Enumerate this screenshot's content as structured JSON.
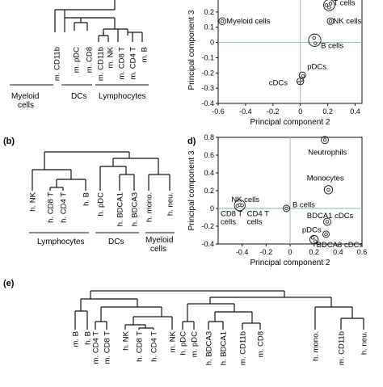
{
  "panels": {
    "b": "(b)",
    "d": "d)",
    "e": "(e)"
  },
  "panel_a": {
    "leaves": [
      "m. CD11b",
      "m. pDC",
      "m. CD8",
      "m. CD11b",
      "m. NK",
      "m. CD8 T",
      "m. CD4 T",
      "m. B"
    ],
    "groups": [
      "Myeloid\ncells",
      "DCs",
      "Lymphocytes"
    ]
  },
  "panel_b": {
    "leaves": [
      "h. NK",
      "h. CD8 T",
      "h. CD4 T",
      "h. B",
      "h. pDC",
      "h. BDCA1",
      "h. BDCA3",
      "h. mono.",
      "h. neu."
    ],
    "groups": [
      "Lymphocytes",
      "DCs",
      "Myeloid\ncells"
    ]
  },
  "panel_e": {
    "leaves": [
      "m. B",
      "h. B",
      "m. CD4 T",
      "m. CD8 T",
      "h. NK",
      "h. CD8 T",
      "h. CD4 T",
      "m. NK",
      "h. pDC",
      "m. pDC",
      "h. BDCA3",
      "h. BDCA1",
      "m. CD11b",
      "m. CD8",
      "h. mono.",
      "m. CD11b",
      "h. neu."
    ]
  },
  "chart_data": [
    {
      "type": "scatter",
      "panel": "c",
      "xlabel": "Principal component 2",
      "ylabel": "Principal component 3",
      "xlim": [
        -0.6,
        0.45
      ],
      "ylim": [
        -0.4,
        0.3
      ],
      "xticks": [
        "-0.6",
        "-0.4",
        "-0.2",
        "0",
        "0.2",
        "0.4"
      ],
      "yticks": [
        "-0.4",
        "-0.3",
        "-0.2",
        "-0.1",
        "0",
        "0.1",
        "0.2",
        "0.3"
      ],
      "ytick_values": [
        -0.4,
        -0.3,
        -0.2,
        -0.1,
        0,
        0.1,
        0.2,
        0.3
      ],
      "points": [
        {
          "x": -0.57,
          "y": 0.14
        },
        {
          "x": 0.21,
          "y": 0.23
        },
        {
          "x": 0.22,
          "y": 0.255
        },
        {
          "x": 0.19,
          "y": 0.245
        },
        {
          "x": 0.22,
          "y": 0.14
        },
        {
          "x": 0.1,
          "y": 0.03
        },
        {
          "x": 0.11,
          "y": -0.005
        },
        {
          "x": 0.02,
          "y": -0.22
        },
        {
          "x": 0.01,
          "y": -0.245
        },
        {
          "x": -0.01,
          "y": -0.265
        }
      ],
      "annotations": [
        {
          "text": "Myeloid cells",
          "x": -0.54,
          "y": 0.14
        },
        {
          "text": "T cells",
          "x": 0.24,
          "y": 0.26
        },
        {
          "text": "NK cells",
          "x": 0.24,
          "y": 0.14
        },
        {
          "text": "B cells",
          "x": 0.15,
          "y": -0.02
        },
        {
          "text": "pDCs",
          "x": 0.05,
          "y": -0.16
        },
        {
          "text": "cDCs",
          "x": -0.23,
          "y": -0.265
        }
      ],
      "rings": [
        {
          "x": -0.57,
          "y": 0.14,
          "r": 0.025
        },
        {
          "x": 0.21,
          "y": 0.245,
          "r": 0.04
        },
        {
          "x": 0.22,
          "y": 0.14,
          "r": 0.02
        },
        {
          "x": 0.105,
          "y": 0.015,
          "r": 0.045
        },
        {
          "x": 0.015,
          "y": -0.215,
          "r": 0.018
        },
        {
          "x": 0.0,
          "y": -0.255,
          "r": 0.025
        }
      ]
    },
    {
      "type": "scatter",
      "panel": "d",
      "xlabel": "Principal component 2",
      "ylabel": "Principal component 3",
      "xlim": [
        -0.6,
        0.6
      ],
      "ylim": [
        -0.4,
        0.8
      ],
      "xticks": [
        "-0.4",
        "-0.2",
        "0",
        "0.2",
        "0.4",
        "0.6"
      ],
      "xtick_values": [
        -0.4,
        -0.2,
        0,
        0.2,
        0.4,
        0.6
      ],
      "yticks": [
        "-0.4",
        "-0.2",
        "0",
        "0.2",
        "0.4",
        "0.6",
        "0.8"
      ],
      "ytick_values": [
        -0.4,
        -0.2,
        0,
        0.2,
        0.4,
        0.6,
        0.8
      ],
      "points": [
        {
          "x": 0.29,
          "y": 0.77
        },
        {
          "x": 0.32,
          "y": 0.21
        },
        {
          "x": -0.44,
          "y": 0.03
        },
        {
          "x": -0.42,
          "y": 0.04
        },
        {
          "x": -0.4,
          "y": 0.035
        },
        {
          "x": -0.03,
          "y": 0.0
        },
        {
          "x": 0.31,
          "y": -0.15
        },
        {
          "x": 0.19,
          "y": -0.33
        },
        {
          "x": 0.21,
          "y": -0.37
        },
        {
          "x": 0.3,
          "y": -0.29
        }
      ],
      "annotations": [
        {
          "text": "Neutrophils",
          "x": 0.15,
          "y": 0.63
        },
        {
          "text": "Monocytes",
          "x": 0.14,
          "y": 0.34
        },
        {
          "text": "NK cells",
          "x": -0.49,
          "y": 0.1
        },
        {
          "text": "B cells",
          "x": 0.02,
          "y": 0.04
        },
        {
          "text": "CD8 T",
          "x": -0.58,
          "y": -0.06
        },
        {
          "text": "cells",
          "x": -0.58,
          "y": -0.15
        },
        {
          "text": "CD4 T",
          "x": -0.36,
          "y": -0.06
        },
        {
          "text": "cells",
          "x": -0.36,
          "y": -0.15
        },
        {
          "text": "BDCA1 cDCs",
          "x": 0.14,
          "y": -0.08
        },
        {
          "text": "pDCs",
          "x": 0.1,
          "y": -0.24
        },
        {
          "text": "BDCA3 cDCs",
          "x": 0.22,
          "y": -0.41
        }
      ],
      "rings": [
        {
          "x": 0.29,
          "y": 0.77,
          "r": 0.03
        },
        {
          "x": 0.32,
          "y": 0.21,
          "r": 0.035
        },
        {
          "x": -0.42,
          "y": 0.035,
          "r": 0.045
        },
        {
          "x": -0.03,
          "y": 0.0,
          "r": 0.02
        },
        {
          "x": 0.31,
          "y": -0.15,
          "r": 0.03
        },
        {
          "x": 0.2,
          "y": -0.35,
          "r": 0.035
        },
        {
          "x": 0.3,
          "y": -0.29,
          "r": 0.02
        }
      ]
    }
  ]
}
